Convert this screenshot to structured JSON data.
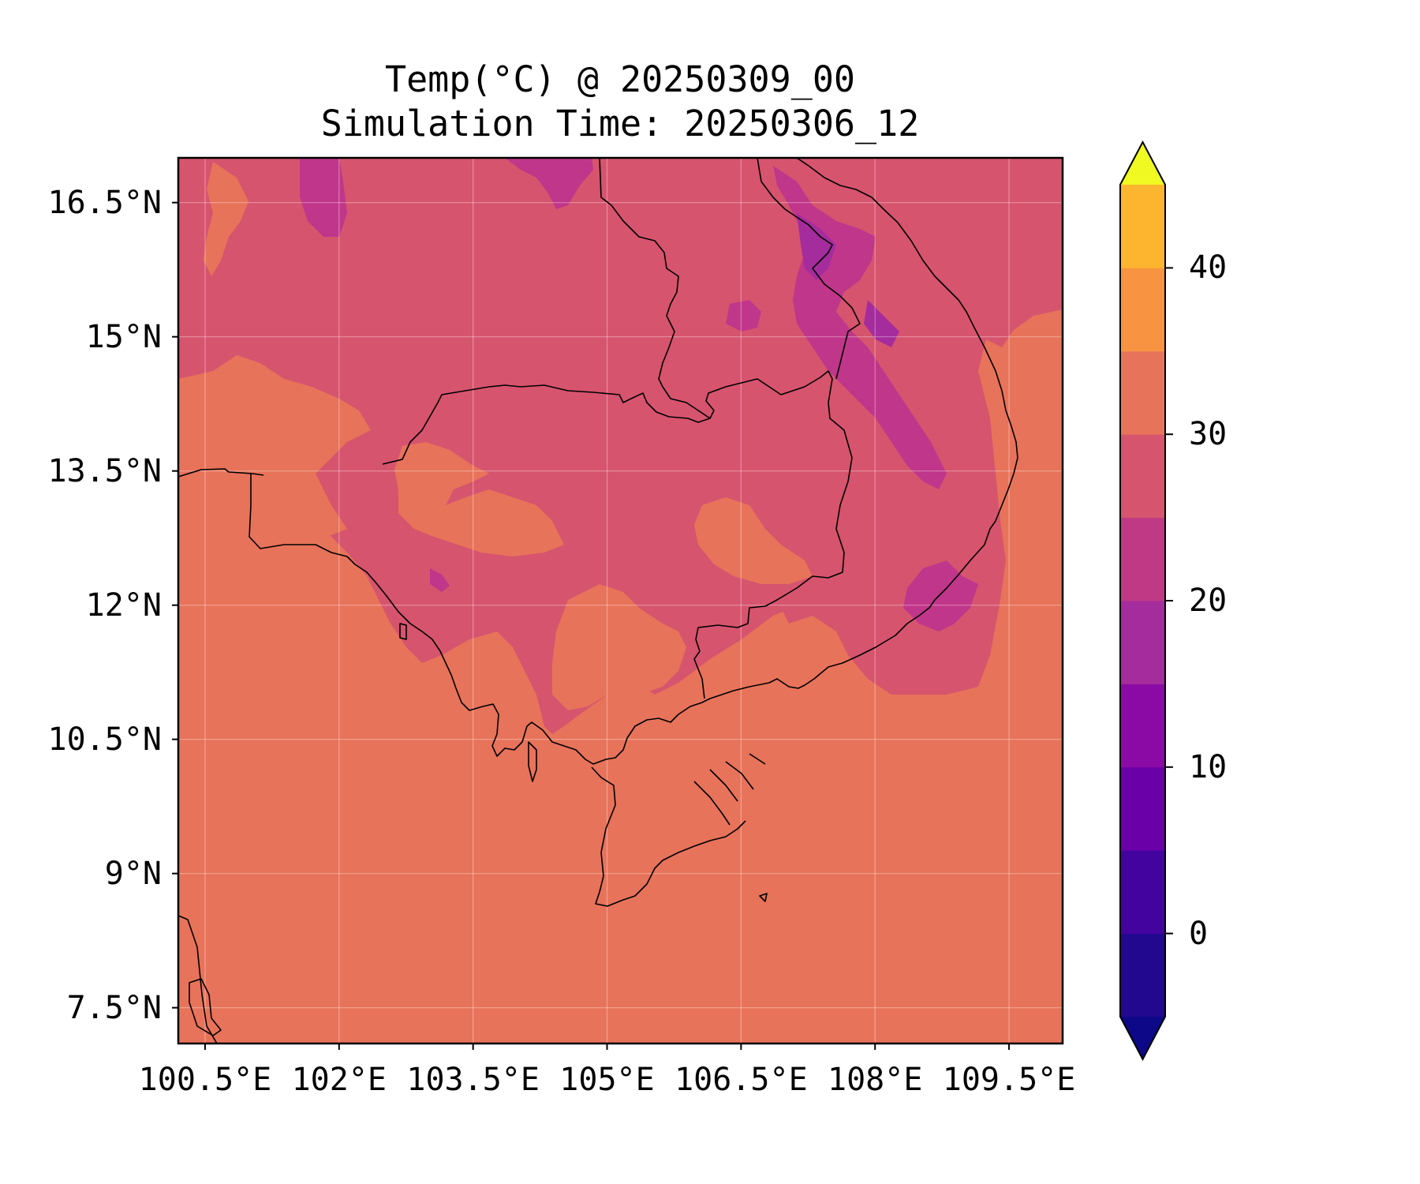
{
  "title": {
    "line1": "Temp(°C) @ 20250309_00",
    "line2": "Simulation Time: 20250306_12"
  },
  "map": {
    "variable": "Temp(°C)",
    "extent_lon": [
      100.2,
      110.1
    ],
    "extent_lat": [
      7.1,
      17.0
    ],
    "y_ticks": [
      {
        "value": 16.5,
        "label": "16.5°N"
      },
      {
        "value": 15.0,
        "label": "15°N"
      },
      {
        "value": 13.5,
        "label": "13.5°N"
      },
      {
        "value": 12.0,
        "label": "12°N"
      },
      {
        "value": 10.5,
        "label": "10.5°N"
      },
      {
        "value": 9.0,
        "label": "9°N"
      },
      {
        "value": 7.5,
        "label": "7.5°N"
      }
    ],
    "x_ticks": [
      {
        "value": 100.5,
        "label": "100.5°E"
      },
      {
        "value": 102.0,
        "label": "102°E"
      },
      {
        "value": 103.5,
        "label": "103.5°E"
      },
      {
        "value": 105.0,
        "label": "105°E"
      },
      {
        "value": 106.5,
        "label": "106.5°E"
      },
      {
        "value": 108.0,
        "label": "108°E"
      },
      {
        "value": 109.5,
        "label": "109.5°E"
      }
    ]
  },
  "colorbar": {
    "levels": [
      -5,
      0,
      5,
      10,
      15,
      20,
      25,
      30,
      35,
      40,
      45
    ],
    "colors": [
      "#22088f",
      "#43039e",
      "#6a00a8",
      "#8b0aa5",
      "#a52c9d",
      "#bf3984",
      "#d6546e",
      "#e7735a",
      "#f89441",
      "#fdb42f",
      "#f0e726"
    ],
    "under_color": "#0d0887",
    "over_color": "#f0f921",
    "ticks": [
      {
        "value": 0,
        "label": "0"
      },
      {
        "value": 10,
        "label": "10"
      },
      {
        "value": 20,
        "label": "20"
      },
      {
        "value": 30,
        "label": "30"
      },
      {
        "value": 40,
        "label": "40"
      }
    ]
  },
  "regions": {
    "ocean_band_color": "#e7735a",
    "land_band_color": "#d6546e",
    "cool_band_color": "#c0368a",
    "coldest_band_color": "#a52c9d"
  }
}
